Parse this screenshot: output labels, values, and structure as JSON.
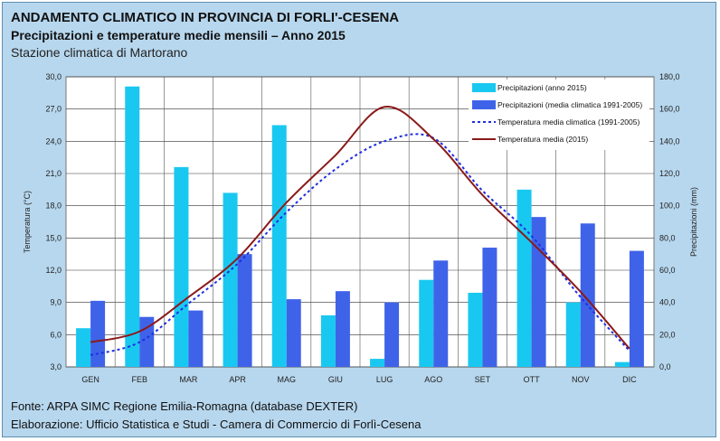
{
  "header": {
    "title": "ANDAMENTO CLIMATICO IN PROVINCIA DI FORLI'-CESENA",
    "subtitle": "Precipitazioni e temperature medie mensili – Anno 2015",
    "station": "Stazione climatica di Martorano"
  },
  "footer": {
    "source": "Fonte: ARPA SIMC Regione Emilia-Romagna (database DEXTER)",
    "credit": "Elaborazione: Ufficio Statistica e Studi - Camera di Commercio di Forlì-Cesena"
  },
  "colors": {
    "background": "#b7d7ee",
    "bar_2015": "#19c8f0",
    "bar_clima": "#3f63e8",
    "line_clima": "#1f2ee0",
    "line_2015": "#8b1a1a"
  },
  "chart_data": {
    "type": "bar",
    "categories": [
      "GEN",
      "FEB",
      "MAR",
      "APR",
      "MAG",
      "GIU",
      "LUG",
      "AGO",
      "SET",
      "OTT",
      "NOV",
      "DIC"
    ],
    "series": [
      {
        "name": "Precipitazioni (anno 2015)",
        "type": "bar",
        "axis": "right",
        "color": "#19c8f0",
        "values": [
          24,
          174,
          124,
          108,
          150,
          32,
          5,
          54,
          46,
          110,
          40,
          3
        ]
      },
      {
        "name": "Precipitazioni (media climatica 1991-2005)",
        "type": "bar",
        "axis": "right",
        "color": "#3f63e8",
        "values": [
          41,
          31,
          35,
          70,
          42,
          47,
          40,
          66,
          74,
          93,
          89,
          72
        ]
      },
      {
        "name": "Temperatura media climatica (1991-2005)",
        "type": "line",
        "style": "dotted",
        "axis": "left",
        "color": "#1f2ee0",
        "values": [
          4.1,
          5.3,
          8.9,
          12.6,
          17.4,
          21.4,
          24.0,
          24.3,
          19.4,
          15.2,
          9.5,
          4.5
        ]
      },
      {
        "name": "Temperatura media (2015)",
        "type": "line",
        "style": "solid",
        "axis": "left",
        "color": "#8b1a1a",
        "values": [
          5.3,
          6.3,
          9.5,
          13.1,
          18.3,
          22.7,
          27.2,
          24.2,
          19.0,
          14.6,
          10.0,
          4.7
        ]
      }
    ],
    "yleft": {
      "label": "Temperatura (°C)",
      "min": 3,
      "max": 30,
      "ticks": [
        "3,0",
        "6,0",
        "9,0",
        "12,0",
        "15,0",
        "18,0",
        "21,0",
        "24,0",
        "27,0",
        "30,0"
      ]
    },
    "yright": {
      "label": "Precipitazioni (mm)",
      "min": 0,
      "max": 180,
      "ticks": [
        "0,0",
        "20,0",
        "40,0",
        "60,0",
        "80,0",
        "100,0",
        "120,0",
        "140,0",
        "160,0",
        "180,0"
      ]
    },
    "grid": true,
    "legend_position": "top-right"
  }
}
